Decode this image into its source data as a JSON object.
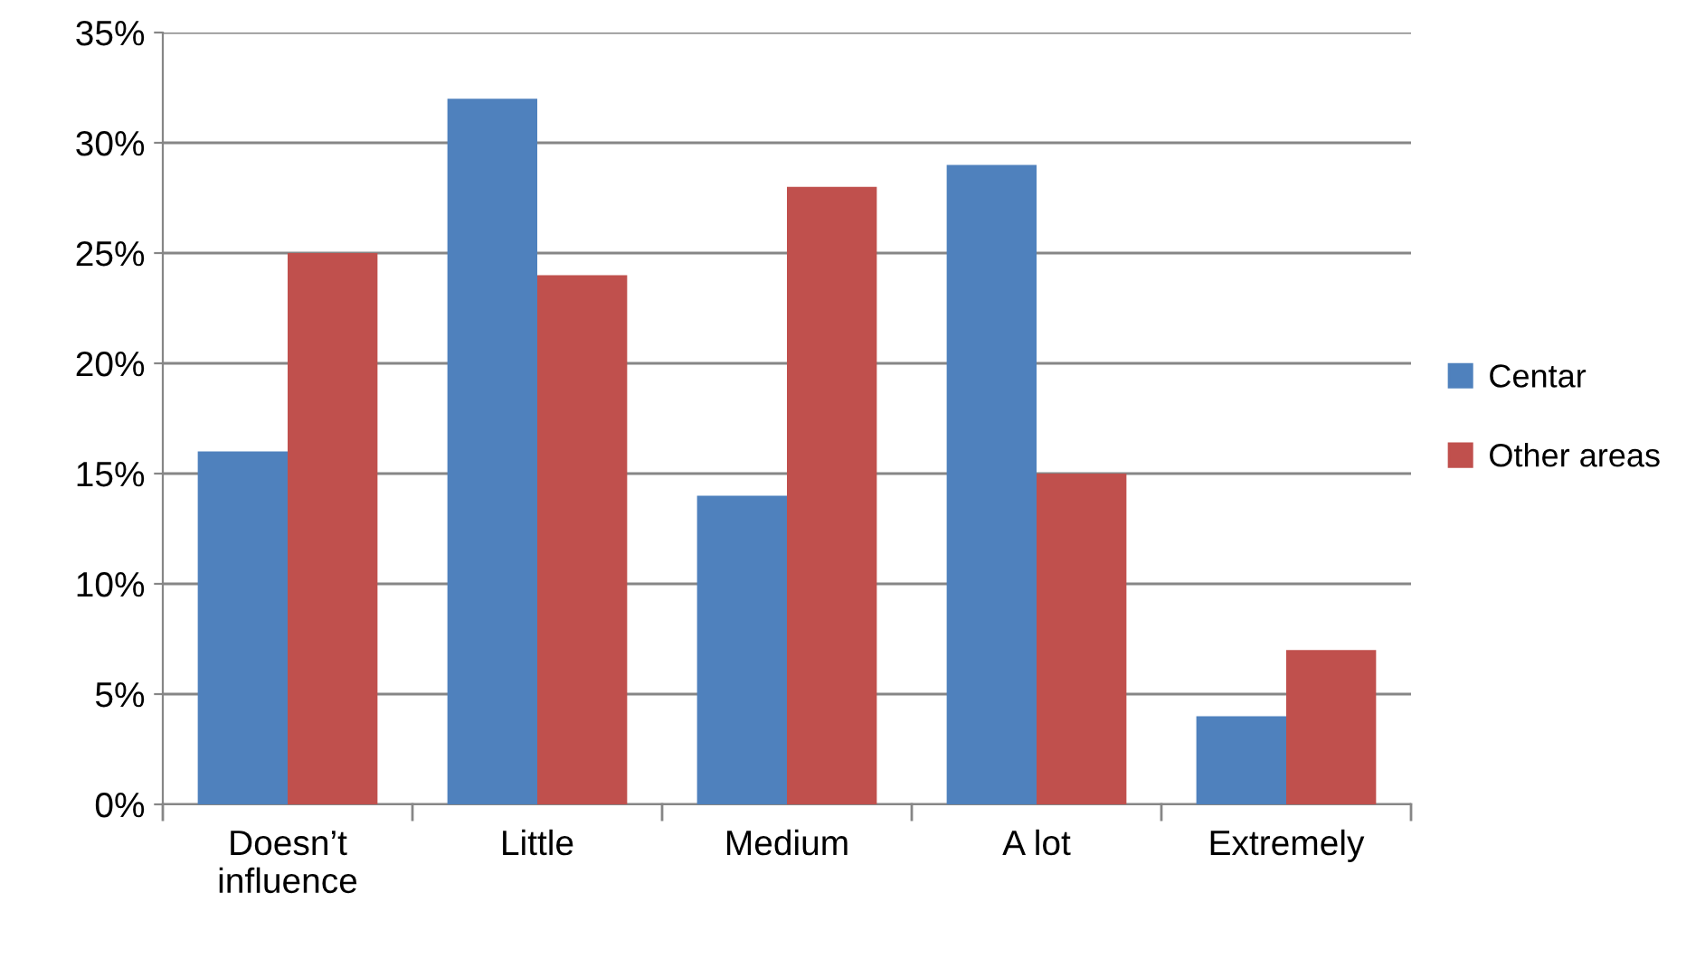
{
  "chart_data": {
    "type": "bar",
    "categories": [
      "Doesn’t\ninfluence",
      "Little",
      "Medium",
      "A lot",
      "Extremely"
    ],
    "series": [
      {
        "name": "Centar",
        "color": "#4f81bd",
        "values": [
          16,
          32,
          14,
          29,
          4
        ]
      },
      {
        "name": "Other areas",
        "color": "#c0504d",
        "values": [
          25,
          24,
          28,
          15,
          7
        ]
      }
    ],
    "ylim": [
      0,
      35
    ],
    "yticks": [
      {
        "value": 0,
        "label": "0%"
      },
      {
        "value": 5,
        "label": "5%"
      },
      {
        "value": 10,
        "label": "10%"
      },
      {
        "value": 15,
        "label": "15%"
      },
      {
        "value": 20,
        "label": "20%"
      },
      {
        "value": 25,
        "label": "25%"
      },
      {
        "value": 30,
        "label": "30%"
      },
      {
        "value": 35,
        "label": "35%"
      }
    ],
    "grid": "y",
    "legend": "right"
  }
}
